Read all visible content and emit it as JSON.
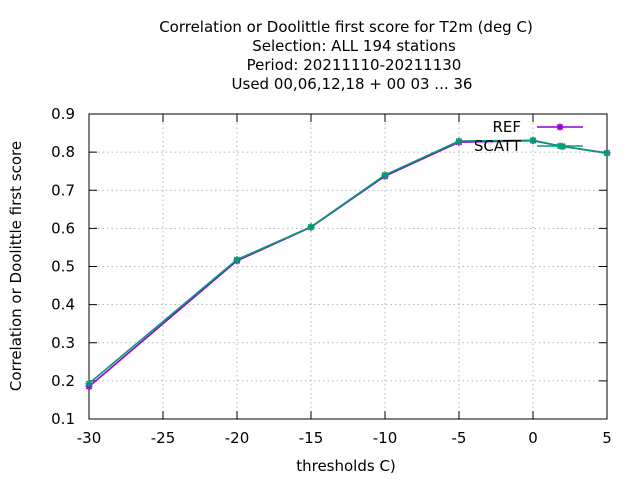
{
  "chart_data": {
    "type": "line",
    "title_lines": [
      "Correlation or Doolittle first score  for T2m (deg C)",
      "Selection: ALL    194 stations",
      "Period: 20211110-20211130",
      "Used  00,06,12,18 + 00 03 ... 36"
    ],
    "xlabel": "thresholds C)",
    "ylabel": "Correlation or Doolittle first score",
    "xlim": [
      -30,
      5
    ],
    "ylim": [
      0.1,
      0.9
    ],
    "xticks": [
      -30,
      -25,
      -20,
      -15,
      -10,
      -5,
      0,
      5
    ],
    "yticks": [
      0.1,
      0.2,
      0.3,
      0.4,
      0.5,
      0.6,
      0.7,
      0.8,
      0.9
    ],
    "xtick_labels": [
      "-30",
      "-25",
      "-20",
      "-15",
      "-10",
      "-5",
      "0",
      "5"
    ],
    "ytick_labels": [
      "0.1",
      "0.2",
      "0.3",
      "0.4",
      "0.5",
      "0.6",
      "0.7",
      "0.8",
      "0.9"
    ],
    "grid": true,
    "legend_position": "top-right",
    "series": [
      {
        "name": "REF",
        "color": "#9400d3",
        "marker": "cross",
        "x": [
          -30,
          -20,
          -15,
          -10,
          -5,
          0,
          2,
          5
        ],
        "y": [
          0.185,
          0.515,
          0.603,
          0.737,
          0.826,
          0.83,
          0.815,
          0.798
        ]
      },
      {
        "name": "SCATT",
        "color": "#009e73",
        "marker": "cross",
        "x": [
          -30,
          -20,
          -15,
          -10,
          -5,
          0,
          2,
          5
        ],
        "y": [
          0.193,
          0.518,
          0.604,
          0.74,
          0.829,
          0.831,
          0.815,
          0.797
        ]
      }
    ]
  }
}
